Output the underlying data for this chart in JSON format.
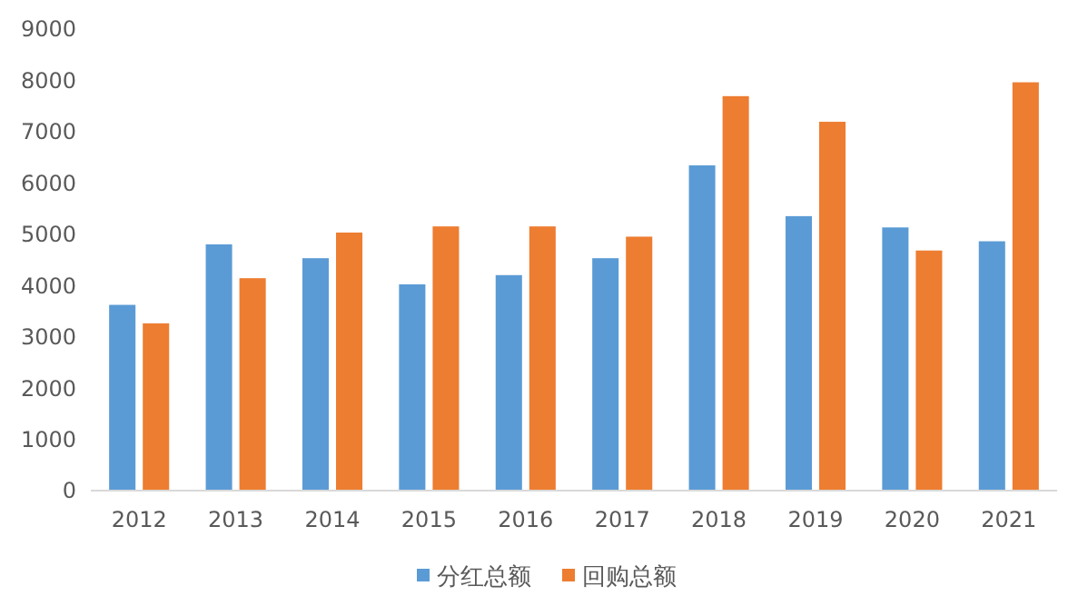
{
  "chart_data": {
    "type": "bar",
    "categories": [
      "2012",
      "2013",
      "2014",
      "2015",
      "2016",
      "2017",
      "2018",
      "2019",
      "2020",
      "2021"
    ],
    "series": [
      {
        "name": "分红总额",
        "color": "#5b9bd5",
        "values": [
          3640,
          4820,
          4550,
          4040,
          4220,
          4550,
          6360,
          5370,
          5150,
          4880
        ]
      },
      {
        "name": "回购总额",
        "color": "#ed7d31",
        "values": [
          3280,
          4160,
          5050,
          5170,
          5170,
          4970,
          7710,
          7210,
          4700,
          7980
        ]
      }
    ],
    "ylim": [
      0,
      9000
    ],
    "yticks": [
      0,
      1000,
      2000,
      3000,
      4000,
      5000,
      6000,
      7000,
      8000,
      9000
    ],
    "grid": false,
    "legend": "bottom"
  }
}
